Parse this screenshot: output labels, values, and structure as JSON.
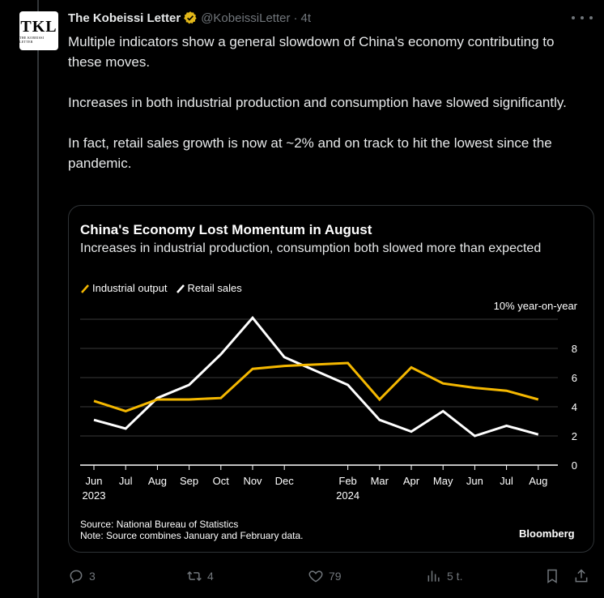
{
  "tweet": {
    "author_name": "The Kobeissi Letter",
    "author_handle": "@KobeissiLetter",
    "separator": "·",
    "time": "4t",
    "avatar_mono": "TKL",
    "avatar_sub": "THE KOBEISSI LETTER",
    "paragraphs": [
      "Multiple indicators show a general slowdown of China's economy contributing to these moves.",
      "Increases in both industrial production and consumption have slowed significantly.",
      "In fact, retail sales growth is now at ~2% and on track to hit the lowest since the pandemic."
    ]
  },
  "card": {
    "title": "China's Economy Lost Momentum in August",
    "subtitle": "Increases in industrial production, consumption both slowed more than expected",
    "source": "Source: National Bureau of Statistics",
    "note": "Note: Source combines January and February data.",
    "brand": "Bloomberg"
  },
  "chart_data": {
    "type": "line",
    "title": "China's Economy Lost Momentum in August",
    "subtitle": "Increases in industrial production, consumption both slowed more than expected",
    "ylabel": "10% year-on-year",
    "ylim": [
      0,
      10
    ],
    "yticks": [
      0,
      2,
      4,
      6,
      8
    ],
    "grid": true,
    "legend": "top-left",
    "x": [
      "Jun 2023",
      "Jul",
      "Aug",
      "Sep",
      "Oct",
      "Nov",
      "Dec",
      "Feb 2024",
      "Mar",
      "Apr",
      "May",
      "Jun",
      "Jul",
      "Aug"
    ],
    "xtick_labels": [
      {
        "label": "Jun",
        "year": "2023"
      },
      {
        "label": "Jul"
      },
      {
        "label": "Aug"
      },
      {
        "label": "Sep"
      },
      {
        "label": "Oct"
      },
      {
        "label": "Nov"
      },
      {
        "label": "Dec"
      },
      {
        "label": "Feb",
        "year": "2024"
      },
      {
        "label": "Mar"
      },
      {
        "label": "Apr"
      },
      {
        "label": "May"
      },
      {
        "label": "Jun"
      },
      {
        "label": "Jul"
      },
      {
        "label": "Aug"
      }
    ],
    "x_slots": [
      0,
      1,
      2,
      3,
      4,
      5,
      6,
      8,
      9,
      10,
      11,
      12,
      13,
      14
    ],
    "series": [
      {
        "name": "Industrial output",
        "color": "#f5b800",
        "values": [
          4.4,
          3.7,
          4.5,
          4.5,
          4.6,
          6.6,
          6.8,
          7.0,
          4.5,
          6.7,
          5.6,
          5.3,
          5.1,
          4.5
        ]
      },
      {
        "name": "Retail sales",
        "color": "#ffffff",
        "values": [
          3.1,
          2.5,
          4.6,
          5.5,
          7.6,
          10.1,
          7.4,
          5.5,
          3.1,
          2.3,
          3.7,
          2.0,
          2.7,
          2.1
        ]
      }
    ]
  },
  "actions": {
    "reply_count": "3",
    "repost_count": "4",
    "like_count": "79",
    "views_count": "5 t."
  }
}
